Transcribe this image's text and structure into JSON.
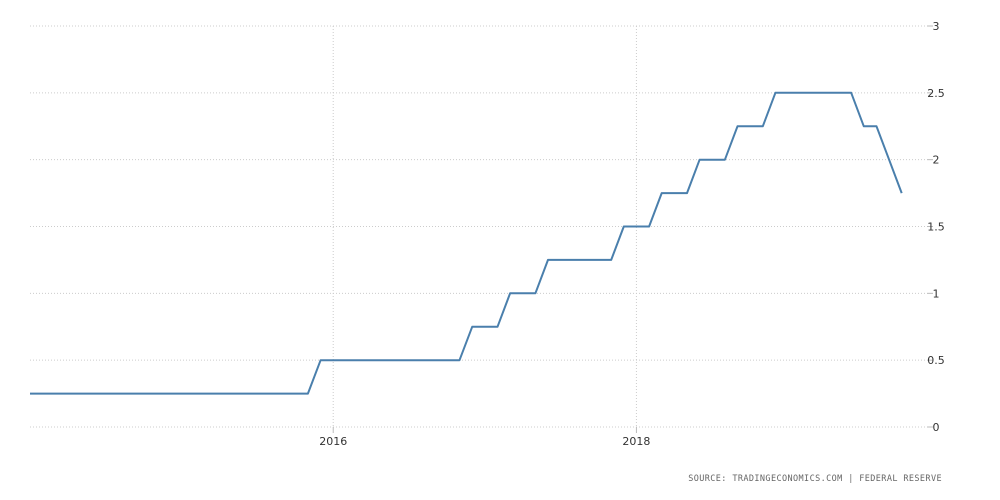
{
  "chart_data": {
    "type": "line",
    "title": "",
    "xlabel": "",
    "ylabel": "",
    "x_tick_labels": [
      "2016",
      "2018"
    ],
    "y_tick_labels": [
      "0",
      "0.5",
      "1",
      "1.5",
      "2",
      "2.5",
      "3"
    ],
    "ylim": [
      0,
      3
    ],
    "xlim": [
      "2014-01",
      "2019-12"
    ],
    "grid": "dotted",
    "line_color": "#4a7fac",
    "series": [
      {
        "points": [
          [
            "2014-01",
            0.25
          ],
          [
            "2015-11",
            0.25
          ],
          [
            "2015-12",
            0.5
          ],
          [
            "2016-11",
            0.5
          ],
          [
            "2016-12",
            0.75
          ],
          [
            "2017-02",
            0.75
          ],
          [
            "2017-03",
            1.0
          ],
          [
            "2017-05",
            1.0
          ],
          [
            "2017-06",
            1.25
          ],
          [
            "2017-11",
            1.25
          ],
          [
            "2017-12",
            1.5
          ],
          [
            "2018-02",
            1.5
          ],
          [
            "2018-03",
            1.75
          ],
          [
            "2018-05",
            1.75
          ],
          [
            "2018-06",
            2.0
          ],
          [
            "2018-08",
            2.0
          ],
          [
            "2018-09",
            2.25
          ],
          [
            "2018-11",
            2.25
          ],
          [
            "2018-12",
            2.5
          ],
          [
            "2019-06",
            2.5
          ],
          [
            "2019-07",
            2.25
          ],
          [
            "2019-08",
            2.25
          ],
          [
            "2019-09",
            2.0
          ],
          [
            "2019-10",
            1.75
          ]
        ]
      }
    ],
    "source": "SOURCE: TRADINGECONOMICS.COM | FEDERAL RESERVE"
  }
}
